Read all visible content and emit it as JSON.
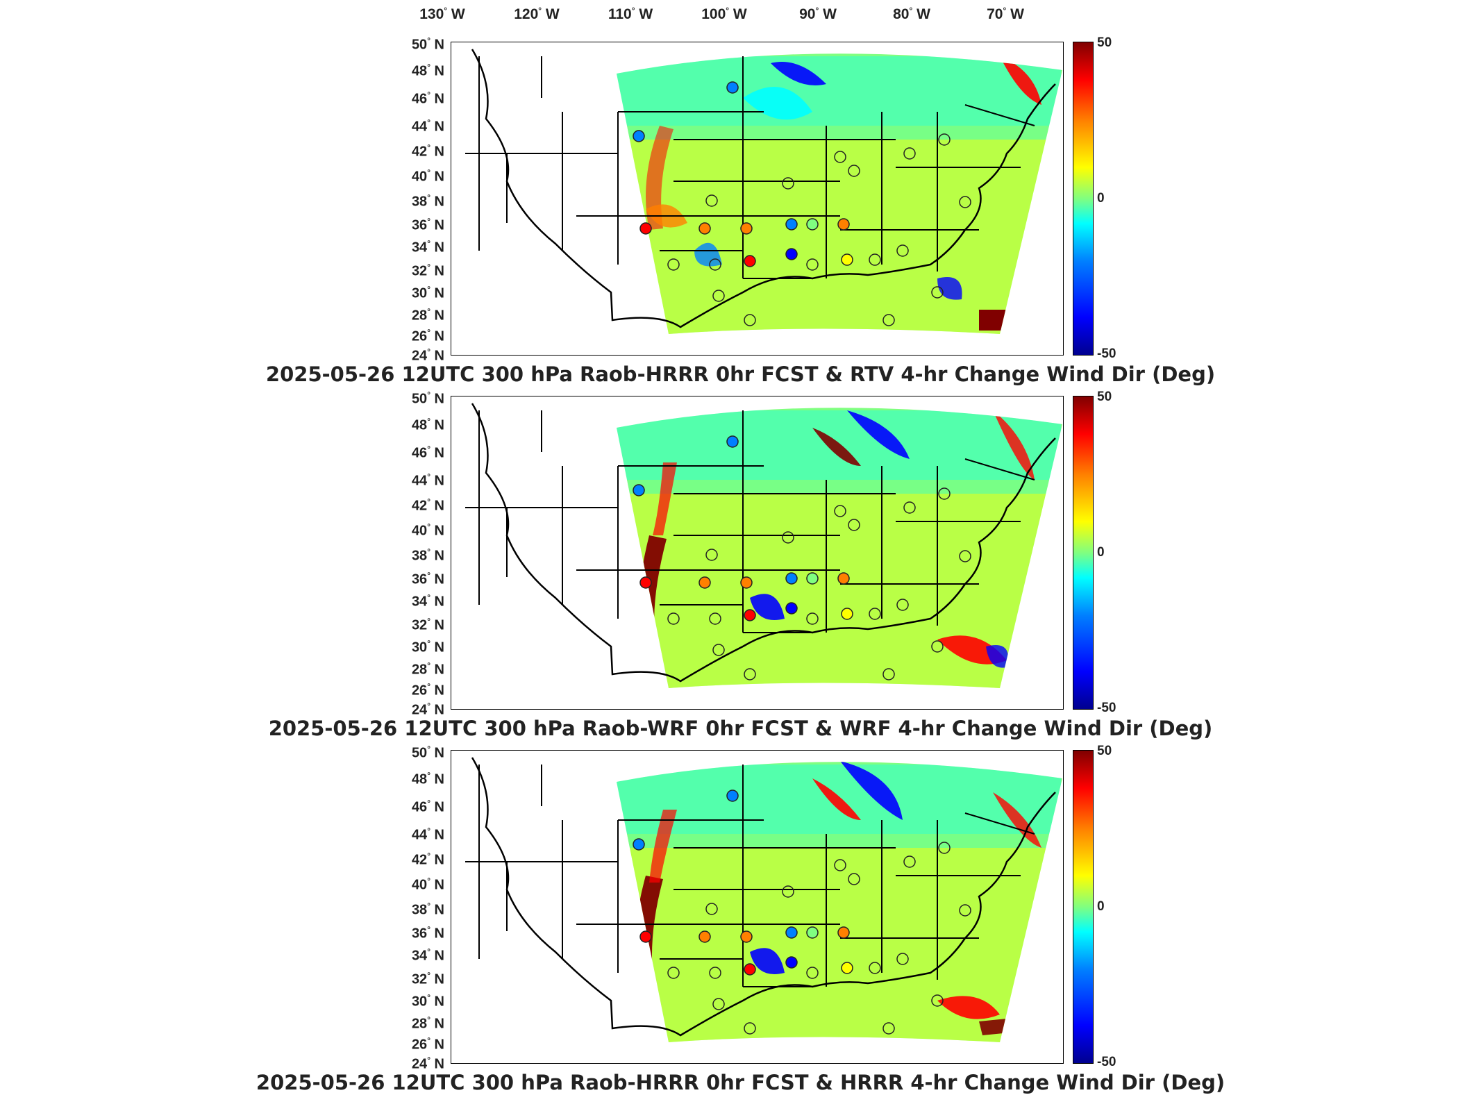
{
  "lon_labels": [
    "130",
    "120",
    "110",
    "100",
    "90",
    "80",
    "70"
  ],
  "lon_unit": "W",
  "lat_labels": [
    "50",
    "48",
    "46",
    "44",
    "42",
    "40",
    "38",
    "36",
    "34",
    "32",
    "30",
    "28",
    "26",
    "24"
  ],
  "lat_unit": "N",
  "degree_symbol": "°",
  "colorbar": {
    "max": "50",
    "mid": "0",
    "min": "-50",
    "colors": [
      "#00008f",
      "#0000ff",
      "#0080ff",
      "#00ffff",
      "#80ff80",
      "#ffff00",
      "#ff8000",
      "#ff0000",
      "#800000"
    ]
  },
  "panels": [
    {
      "title": "2025-05-26 12UTC 300 hPa Raob-HRRR 0hr FCST & RTV 4-hr Change Wind Dir (Deg)"
    },
    {
      "title": "2025-05-26 12UTC 300 hPa Raob-WRF 0hr FCST & WRF 4-hr Change Wind Dir (Deg)"
    },
    {
      "title": "2025-05-26 12UTC 300 hPa Raob-HRRR 0hr FCST & HRRR 4-hr Change Wind Dir (Deg)"
    }
  ]
}
